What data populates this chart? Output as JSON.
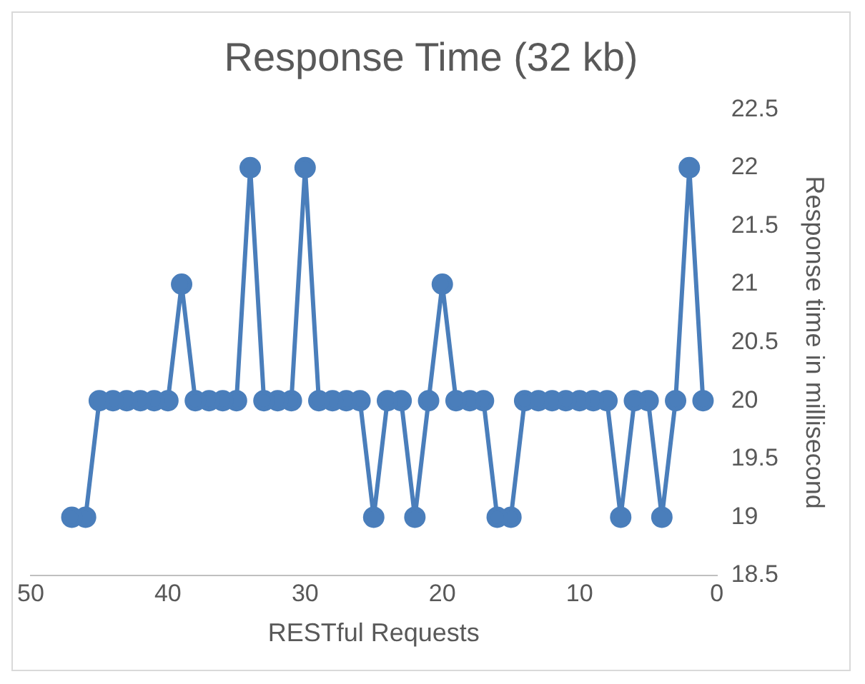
{
  "chart_data": {
    "type": "line",
    "title": "Response Time (32 kb)",
    "xlabel": "RESTful Requests",
    "ylabel": "Response time in millisecond",
    "x": [
      1,
      2,
      3,
      4,
      5,
      6,
      7,
      8,
      9,
      10,
      11,
      12,
      13,
      14,
      15,
      16,
      17,
      18,
      19,
      20,
      21,
      22,
      23,
      24,
      25,
      26,
      27,
      28,
      29,
      30,
      31,
      32,
      33,
      34,
      35,
      36,
      37,
      38,
      39,
      40,
      41,
      42,
      43,
      44,
      45,
      46,
      47
    ],
    "series": [
      {
        "color": "#4a7ebb",
        "values": [
          20,
          22,
          20,
          19,
          20,
          20,
          19,
          20,
          20,
          20,
          20,
          20,
          20,
          20,
          19,
          19,
          20,
          20,
          20,
          21,
          20,
          19,
          20,
          20,
          19,
          20,
          20,
          20,
          20,
          22,
          20,
          20,
          20,
          22,
          20,
          20,
          20,
          20,
          21,
          20,
          20,
          20,
          20,
          20,
          20,
          19,
          19
        ]
      }
    ],
    "xlim": [
      50,
      0
    ],
    "xticks": [
      50,
      40,
      30,
      20,
      10,
      0
    ],
    "ylim": [
      18.5,
      22.5
    ],
    "yticks": [
      18.5,
      19,
      19.5,
      20,
      20.5,
      21,
      21.5,
      22,
      22.5
    ],
    "grid": false,
    "legend": false,
    "marker": "circle",
    "line_style": "solid"
  }
}
